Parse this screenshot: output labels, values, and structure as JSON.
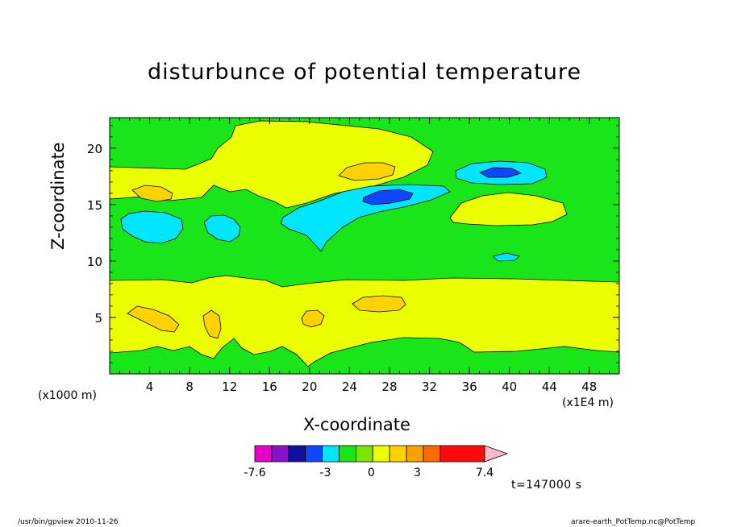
{
  "chart_data": {
    "type": "heatmap",
    "title": "disturbunce of potential temperature",
    "xlabel": "X-coordinate",
    "ylabel": "Z-coordinate",
    "x_unit_label": "(x1000 m)",
    "x_scale_label": "(x1E4 m)",
    "x_ticks": [
      4,
      8,
      12,
      16,
      20,
      24,
      28,
      32,
      36,
      40,
      44,
      48
    ],
    "y_ticks": [
      5,
      10,
      15,
      20
    ],
    "xlim": [
      0,
      51
    ],
    "ylim": [
      0,
      22.7
    ],
    "colorbar": {
      "levels": [
        -7.6,
        -6.5,
        -5.4,
        -4.3,
        -3.2,
        -2.1,
        -1.0,
        0.1,
        1.2,
        2.3,
        3.4,
        4.5,
        7.4
      ],
      "tick_labels": [
        "-7.6",
        "-3",
        "0",
        "3",
        "7.4"
      ],
      "tick_values": [
        -7.6,
        -3,
        0,
        3,
        7.4
      ],
      "colors": [
        "#e600c8",
        "#8a12c8",
        "#1010a0",
        "#1046ff",
        "#00e6ff",
        "#19e619",
        "#78e600",
        "#ebff00",
        "#ffd200",
        "#ffa000",
        "#ff6a00",
        "#ff0a0a",
        "#ff8080",
        "#ffb8c8"
      ]
    },
    "regions": [
      {
        "level": "positive",
        "center": [
          16,
          19
        ],
        "note": "broad yellow band z~16-21"
      },
      {
        "level": "positive",
        "center": [
          26,
          4
        ],
        "note": "broad yellow band z~1-8"
      },
      {
        "level": "max",
        "center": [
          26,
          17.8
        ]
      },
      {
        "level": "max",
        "center": [
          6,
          5
        ]
      },
      {
        "level": "max",
        "center": [
          27,
          6.3
        ]
      },
      {
        "level": "min",
        "center": [
          28,
          15.7
        ]
      },
      {
        "level": "min",
        "center": [
          39,
          17.8
        ]
      },
      {
        "level": "negative",
        "center": [
          5,
          12.9
        ]
      }
    ]
  },
  "annotations": {
    "time": "t=147000 s",
    "footer_left": "/usr/bin/gpview   2010-11-26",
    "footer_right": "arare-earth_PotTemp.nc@PotTemp"
  }
}
